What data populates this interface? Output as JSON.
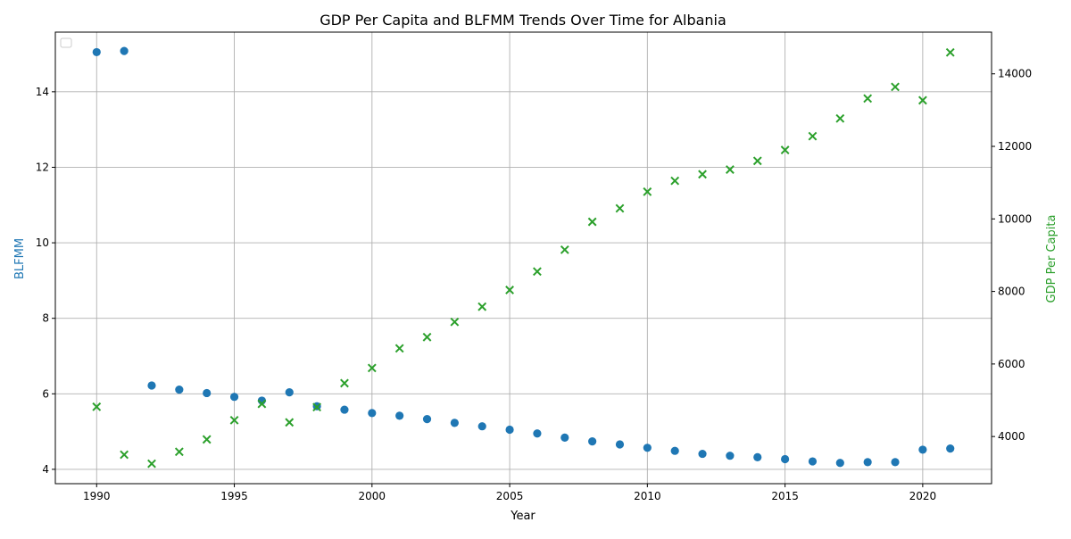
{
  "chart_data": {
    "type": "scatter",
    "title": "GDP Per Capita and BLFMM Trends Over Time for Albania",
    "xlabel": "Year",
    "ylabel_left": "BLFMM",
    "ylabel_right": "GDP Per Capita",
    "xlim": [
      1988.5,
      2022.5
    ],
    "ylim_left": [
      3.62,
      15.58
    ],
    "ylim_right": [
      2700,
      15150
    ],
    "x_ticks": [
      1990,
      1995,
      2000,
      2005,
      2010,
      2015,
      2020
    ],
    "y_left_ticks": [
      4,
      6,
      8,
      10,
      12,
      14
    ],
    "y_right_ticks": [
      4000,
      6000,
      8000,
      10000,
      12000,
      14000
    ],
    "grid": true,
    "legend": "upper left (empty)",
    "colors": {
      "blfmm": "#1f77b4",
      "gdp": "#2ca02c",
      "grid": "#b0b0b0",
      "axis": "#000000"
    },
    "series": [
      {
        "axis": "left",
        "marker": "circle",
        "color": "#1f77b4",
        "x": [
          1990,
          1991,
          1992,
          1993,
          1994,
          1995,
          1996,
          1997,
          1998,
          1999,
          2000,
          2001,
          2002,
          2003,
          2004,
          2005,
          2006,
          2007,
          2008,
          2009,
          2010,
          2011,
          2012,
          2013,
          2014,
          2015,
          2016,
          2017,
          2018,
          2019,
          2020,
          2021
        ],
        "values": [
          15.05,
          15.08,
          6.22,
          6.11,
          6.02,
          5.92,
          5.82,
          6.04,
          5.67,
          5.58,
          5.49,
          5.42,
          5.33,
          5.23,
          5.14,
          5.05,
          4.95,
          4.84,
          4.74,
          4.66,
          4.57,
          4.49,
          4.41,
          4.36,
          4.32,
          4.27,
          4.21,
          4.17,
          4.19,
          4.19,
          4.52,
          4.55
        ]
      },
      {
        "axis": "right",
        "marker": "x",
        "color": "#2ca02c",
        "x": [
          1990,
          1991,
          1992,
          1993,
          1994,
          1995,
          1996,
          1997,
          1998,
          1999,
          2000,
          2001,
          2002,
          2003,
          2004,
          2005,
          2006,
          2007,
          2008,
          2009,
          2010,
          2011,
          2012,
          2013,
          2014,
          2015,
          2016,
          2017,
          2018,
          2019,
          2020,
          2021
        ],
        "values": [
          4820,
          3500,
          3250,
          3580,
          3920,
          4450,
          4900,
          4390,
          4810,
          5470,
          5890,
          6430,
          6740,
          7160,
          7580,
          8040,
          8550,
          9150,
          9920,
          10290,
          10750,
          11050,
          11230,
          11360,
          11600,
          11900,
          12280,
          12770,
          13320,
          13640,
          13270,
          14590
        ]
      }
    ]
  }
}
